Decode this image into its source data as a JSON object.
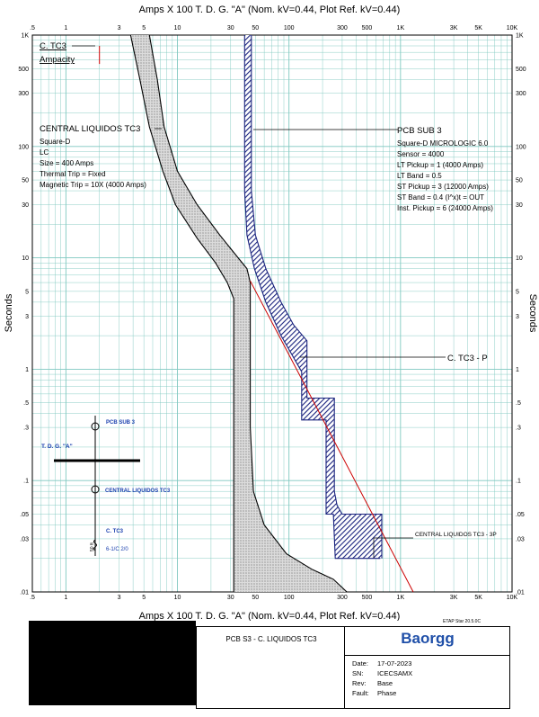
{
  "chart_data": {
    "type": "time-current-curve",
    "title": "Amps  X  100   T. D. G. \"A\" (Nom. kV=0.44, Plot Ref. kV=0.44)",
    "xlabel": "Amps  X  100   T. D. G. \"A\" (Nom. kV=0.44, Plot Ref. kV=0.44)",
    "ylabel": "Seconds",
    "x_scale": "log",
    "y_scale": "log",
    "xlim": [
      0.5,
      10000
    ],
    "ylim": [
      0.01,
      1000
    ],
    "x_ticks": [
      {
        "v": 0.5,
        "label": ".5"
      },
      {
        "v": 1,
        "label": "1"
      },
      {
        "v": 3,
        "label": "3"
      },
      {
        "v": 5,
        "label": "5"
      },
      {
        "v": 10,
        "label": "10"
      },
      {
        "v": 30,
        "label": "30"
      },
      {
        "v": 50,
        "label": "50"
      },
      {
        "v": 100,
        "label": "100"
      },
      {
        "v": 300,
        "label": "300"
      },
      {
        "v": 500,
        "label": "500"
      },
      {
        "v": 1000,
        "label": "1K"
      },
      {
        "v": 3000,
        "label": "3K"
      },
      {
        "v": 5000,
        "label": "5K"
      },
      {
        "v": 10000,
        "label": "10K"
      }
    ],
    "y_ticks": [
      {
        "v": 1000,
        "label": "1K"
      },
      {
        "v": 500,
        "label": "500"
      },
      {
        "v": 300,
        "label": "300"
      },
      {
        "v": 100,
        "label": "100"
      },
      {
        "v": 50,
        "label": "50"
      },
      {
        "v": 30,
        "label": "30"
      },
      {
        "v": 10,
        "label": "10"
      },
      {
        "v": 5,
        "label": "5"
      },
      {
        "v": 3,
        "label": "3"
      },
      {
        "v": 1,
        "label": "1"
      },
      {
        "v": 0.5,
        "label": ".5"
      },
      {
        "v": 0.3,
        "label": ".3"
      },
      {
        "v": 0.1,
        "label": ".1"
      },
      {
        "v": 0.05,
        "label": ".05"
      },
      {
        "v": 0.03,
        "label": ".03"
      },
      {
        "v": 0.01,
        "label": ".01"
      }
    ],
    "series": [
      {
        "name": "CENTRAL LIQUIDOS TC3",
        "color": "#000000",
        "fill": "stipple",
        "left_curve": [
          [
            3.8,
            1000
          ],
          [
            4.6,
            400
          ],
          [
            5.6,
            150
          ],
          [
            7.4,
            60
          ],
          [
            9.6,
            30
          ],
          [
            15,
            15
          ],
          [
            22,
            9
          ],
          [
            28,
            6
          ],
          [
            32,
            4.3
          ],
          [
            32,
            0.01
          ]
        ],
        "right_curve": [
          [
            5.6,
            1000
          ],
          [
            6.6,
            400
          ],
          [
            7.6,
            150
          ],
          [
            10,
            60
          ],
          [
            15,
            30
          ],
          [
            24,
            16
          ],
          [
            35,
            10
          ],
          [
            42,
            8
          ],
          [
            45,
            6
          ],
          [
            45,
            0.3
          ],
          [
            48,
            0.08
          ],
          [
            60,
            0.04
          ],
          [
            95,
            0.022
          ],
          [
            160,
            0.016
          ],
          [
            250,
            0.013
          ],
          [
            330,
            0.01
          ]
        ]
      },
      {
        "name": "PCB SUB 3",
        "color": "#1a237e",
        "fill": "hatch",
        "left_curve": [
          [
            40,
            1000
          ],
          [
            40,
            40
          ],
          [
            42,
            16
          ],
          [
            49,
            8
          ],
          [
            62,
            4
          ],
          [
            85,
            2
          ],
          [
            130,
            0.95
          ],
          [
            130,
            0.35
          ],
          [
            215,
            0.35
          ],
          [
            215,
            0.05
          ],
          [
            250,
            0.05
          ],
          [
            260,
            0.02
          ],
          [
            660,
            0.02
          ]
        ],
        "right_curve": [
          [
            46,
            1000
          ],
          [
            46,
            40
          ],
          [
            50,
            16
          ],
          [
            62,
            8
          ],
          [
            85,
            4
          ],
          [
            110,
            2.5
          ],
          [
            145,
            1.8
          ],
          [
            145,
            0.55
          ],
          [
            255,
            0.55
          ],
          [
            255,
            0.08
          ],
          [
            270,
            0.06
          ],
          [
            300,
            0.05
          ],
          [
            680,
            0.05
          ],
          [
            680,
            0.02
          ]
        ]
      },
      {
        "name": "C. TC3 - P",
        "color": "#cc0000",
        "points": [
          [
            45,
            6.2
          ],
          [
            1300,
            0.01
          ]
        ]
      },
      {
        "name": "C. TC3 Ampacity",
        "color": "#cc0000",
        "points": [
          [
            2,
            800
          ],
          [
            2,
            550
          ]
        ]
      }
    ],
    "annotations": {
      "ctc3": {
        "title": "C. TC3",
        "sub": "Ampacity"
      },
      "central": {
        "title": "CENTRAL LIQUIDOS TC3",
        "lines": [
          "Square-D",
          "LC",
          "Size = 400 Amps",
          "Thermal Trip = Fixed",
          "Magnetic Trip = 10X (4000 Amps)"
        ]
      },
      "pcb": {
        "title": "PCB SUB 3",
        "lines": [
          "Square-D  MICROLOGIC 6.0",
          "Sensor = 4000",
          "LT Pickup = 1 (4000 Amps)",
          "LT Band = 0.5",
          "ST Pickup = 3 (12000 Amps)",
          "ST Band = 0.4  (I^x)t = OUT",
          "Inst. Pickup = 6 (24000 Amps)"
        ]
      },
      "ctc3p": {
        "title": "C. TC3 - P"
      },
      "central3p": {
        "title": "CENTRAL LIQUIDOS TC3 - 3P"
      }
    },
    "one_line": {
      "breaker1": "PCB SUB 3",
      "bus": "T. D. G. \"A\"",
      "breaker2": "CENTRAL LIQUIDOS TC3",
      "cable": "C. TC3",
      "cable_spec": "6-1/C 2/0",
      "cable_len": "50 ft",
      "color": "#1a3fae"
    }
  },
  "title_block": {
    "etap": "ETAP Star 20.5.0C",
    "drawing_title": "PCB S3 - C. LIQUIDOS TC3",
    "company": "Baorgg",
    "rows": [
      {
        "key": "Date:",
        "value": "17-07-2023"
      },
      {
        "key": "SN:",
        "value": "ICECSAMX"
      },
      {
        "key": "Rev:",
        "value": "Base"
      },
      {
        "key": "Fault:",
        "value": "Phase"
      }
    ]
  },
  "colors": {
    "grid": "#7fc8c0",
    "blue": "#1a237e",
    "red": "#cc0000",
    "company": "#1f4fa8"
  }
}
